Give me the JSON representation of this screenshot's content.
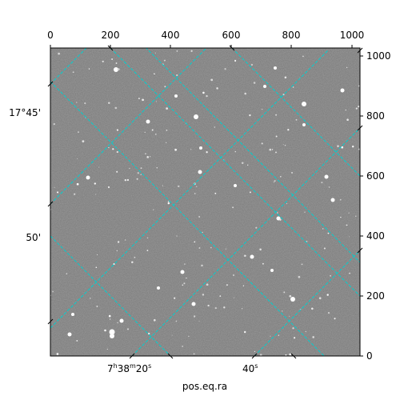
{
  "figure": {
    "xlabel": "pos.eq.ra",
    "top_x_ticks": [
      "0",
      "200",
      "400",
      "600",
      "800",
      "1000"
    ],
    "right_y_ticks": [
      "0",
      "200",
      "400",
      "600",
      "800",
      "1000"
    ],
    "ra_ticks": [
      {
        "h": "7",
        "m": "38",
        "s": "20",
        "sfx": "s"
      },
      {
        "h": "",
        "m": "",
        "s": "40",
        "sfx": "s"
      }
    ],
    "dec_ticks": [
      "17°45'",
      "50'"
    ],
    "grid_color": "#00d0d0",
    "background_color": "#7a7a7a"
  },
  "image": {
    "stars": "many point sources on a noisy gray sky background"
  }
}
